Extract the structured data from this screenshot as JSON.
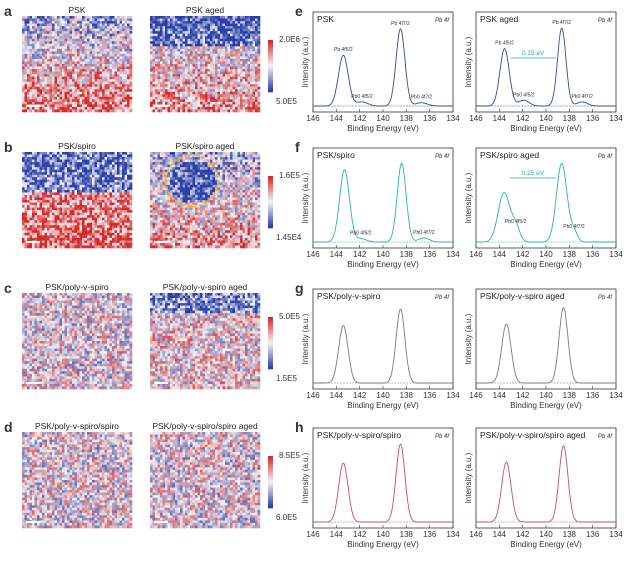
{
  "panel_letters": [
    "a",
    "b",
    "c",
    "d",
    "e",
    "f",
    "g",
    "h"
  ],
  "maps": [
    {
      "title": "PSK",
      "seed": 11,
      "pattern": "bottom-red",
      "colorbar": {
        "top": "2.0E6",
        "bottom": "5.0E5"
      }
    },
    {
      "title": "PSK aged",
      "seed": 23,
      "pattern": "top-blue",
      "colorbar": {
        "top": "2.0E6",
        "bottom": "5.0E5"
      }
    },
    {
      "title": "PSK/spiro",
      "seed": 37,
      "pattern": "split",
      "colorbar": {
        "top": "1.6E5",
        "bottom": "1.45E4"
      }
    },
    {
      "title": "PSK/spiro aged",
      "seed": 41,
      "pattern": "aged-hole",
      "colorbar": {
        "top": "1.6E5",
        "bottom": "1.45E4"
      }
    },
    {
      "title": "PSK/poly-v-spiro",
      "seed": 53,
      "pattern": "uniform",
      "colorbar": {
        "top": "5.0E5",
        "bottom": "1.5E5"
      }
    },
    {
      "title": "PSK/poly-v-spiro aged",
      "seed": 67,
      "pattern": "top-blue-light",
      "colorbar": {
        "top": "5.0E5",
        "bottom": "1.5E5"
      }
    },
    {
      "title": "PSK/poly-v-spiro/spiro",
      "seed": 71,
      "pattern": "uniform",
      "colorbar": {
        "top": "8.5E5",
        "bottom": "6.0E5"
      }
    },
    {
      "title": "PSK/poly-v-spiro/spiro aged",
      "seed": 83,
      "pattern": "uniform",
      "colorbar": {
        "top": "8.5E5",
        "bottom": "6.0E5"
      }
    }
  ],
  "colors": {
    "blue": "#2b3fa8",
    "white": "#f4f4f6",
    "red": "#d62a2a",
    "yellow": "#f2b90f",
    "psk": "#3b4a8f",
    "spiro": "#2bb3a3",
    "poly": "#7b7b7b",
    "polyspiro": "#c0506a"
  },
  "chart_data": {
    "type": "line",
    "xlabel": "Binding Energy (eV)",
    "ylabel": "Intensity (a.u.)",
    "xlim": [
      146,
      134
    ],
    "xticks": [
      "146",
      "144",
      "142",
      "140",
      "138",
      "136",
      "134"
    ],
    "tag": "Pb 4f",
    "panels": [
      {
        "title": "PSK",
        "color": "psk",
        "peaks": [
          {
            "x": 143.4,
            "h": 0.62,
            "w": 0.42
          },
          {
            "x": 141.8,
            "h": 0.05,
            "w": 0.5
          },
          {
            "x": 138.5,
            "h": 0.94,
            "w": 0.38
          },
          {
            "x": 136.7,
            "h": 0.04,
            "w": 0.5
          }
        ],
        "labels": [
          "Pb 4f5/2",
          "Pb0 4f5/2",
          "Pb 4f7/2",
          "Pb0 4f7/2"
        ],
        "annotation": ""
      },
      {
        "title": "PSK aged",
        "color": "psk",
        "peaks": [
          {
            "x": 143.55,
            "h": 0.7,
            "w": 0.4
          },
          {
            "x": 141.9,
            "h": 0.07,
            "w": 0.45
          },
          {
            "x": 138.65,
            "h": 0.95,
            "w": 0.36
          },
          {
            "x": 136.9,
            "h": 0.05,
            "w": 0.45
          }
        ],
        "labels": [
          "Pb 4f5/2",
          "Pb0 4f5/2",
          "Pb 4f7/2",
          "Pb0 4f7/2"
        ],
        "annotation": "0.15 eV"
      },
      {
        "title": "PSK/spiro",
        "color": "spiro",
        "peaks": [
          {
            "x": 143.3,
            "h": 0.88,
            "w": 0.42
          },
          {
            "x": 141.9,
            "h": 0.04,
            "w": 0.45
          },
          {
            "x": 138.4,
            "h": 0.96,
            "w": 0.38
          },
          {
            "x": 136.5,
            "h": 0.05,
            "w": 0.45
          }
        ],
        "labels": [
          "",
          "Pb0 4f5/2",
          "",
          "Pb0 4f7/2"
        ],
        "annotation": ""
      },
      {
        "title": "PSK/spiro aged",
        "color": "spiro",
        "peaks": [
          {
            "x": 143.6,
            "h": 0.6,
            "w": 0.5
          },
          {
            "x": 142.6,
            "h": 0.18,
            "w": 0.35
          },
          {
            "x": 138.65,
            "h": 0.96,
            "w": 0.45
          },
          {
            "x": 137.6,
            "h": 0.12,
            "w": 0.3
          }
        ],
        "labels": [
          "",
          "Pb0 4f5/2",
          "",
          "Pb0 4f7/2"
        ],
        "annotation": "0.25 eV"
      },
      {
        "title": "PSK/poly-v-spiro",
        "color": "poly",
        "peaks": [
          {
            "x": 143.4,
            "h": 0.7,
            "w": 0.4
          },
          {
            "x": 138.5,
            "h": 0.9,
            "w": 0.38
          }
        ],
        "labels": [],
        "annotation": ""
      },
      {
        "title": "PSK/poly-v-spiro aged",
        "color": "poly",
        "peaks": [
          {
            "x": 143.4,
            "h": 0.72,
            "w": 0.4
          },
          {
            "x": 138.5,
            "h": 0.92,
            "w": 0.38
          }
        ],
        "labels": [],
        "annotation": ""
      },
      {
        "title": "PSK/poly-v-spiro/spiro",
        "color": "polyspiro",
        "peaks": [
          {
            "x": 143.4,
            "h": 0.72,
            "w": 0.4
          },
          {
            "x": 138.5,
            "h": 0.95,
            "w": 0.38
          }
        ],
        "labels": [],
        "annotation": ""
      },
      {
        "title": "PSK/poly-v-spiro/spiro aged",
        "color": "polyspiro",
        "peaks": [
          {
            "x": 143.4,
            "h": 0.73,
            "w": 0.4
          },
          {
            "x": 138.5,
            "h": 0.93,
            "w": 0.38
          }
        ],
        "labels": [],
        "annotation": ""
      }
    ]
  }
}
